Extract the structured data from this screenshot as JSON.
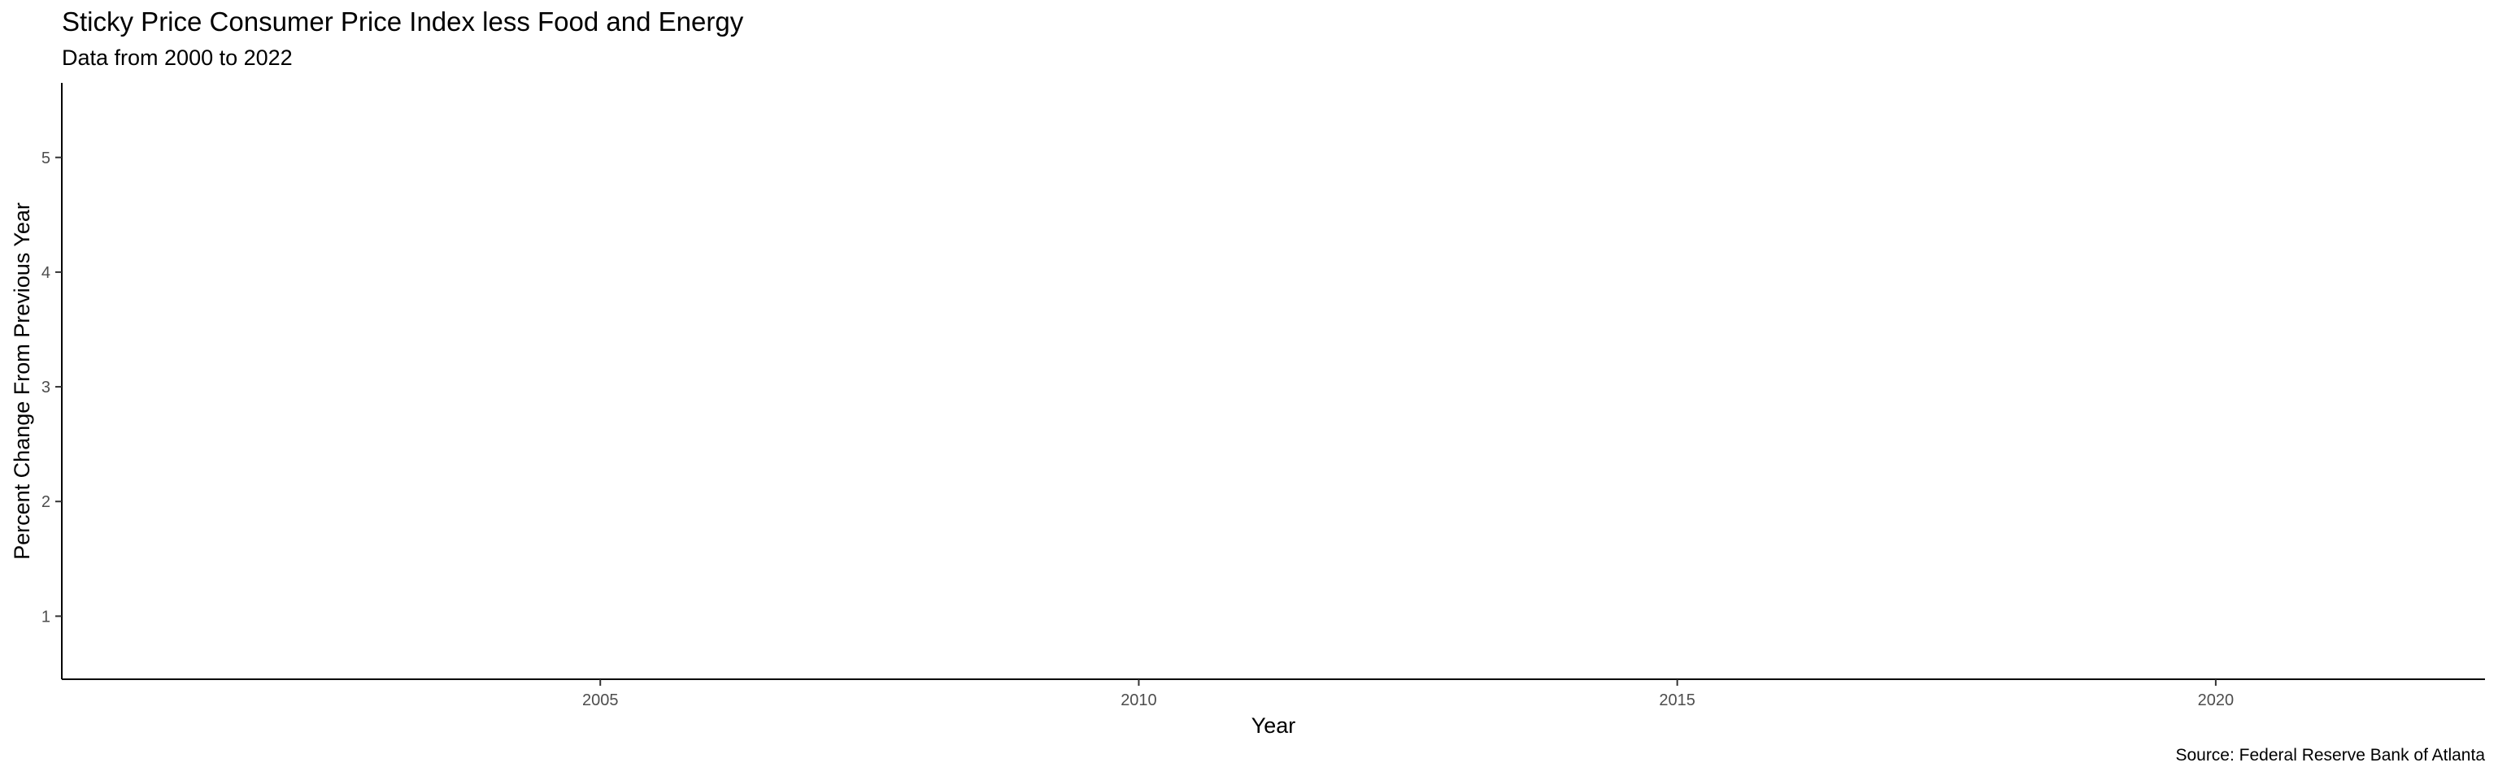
{
  "title": "Sticky Price Consumer Price Index less Food and Energy",
  "subtitle": "Data from 2000 to 2022",
  "caption": "Source: Federal Reserve Bank of Atlanta",
  "chart_data": {
    "type": "line",
    "xlabel": "Year",
    "ylabel": "Percent Change From Previous Year",
    "x_ticks": [
      2005,
      2010,
      2015,
      2020
    ],
    "y_ticks": [
      1,
      2,
      3,
      4,
      5
    ],
    "xlim": [
      2000,
      2022.5
    ],
    "ylim": [
      0.45,
      5.65
    ],
    "grid": false,
    "series": []
  }
}
